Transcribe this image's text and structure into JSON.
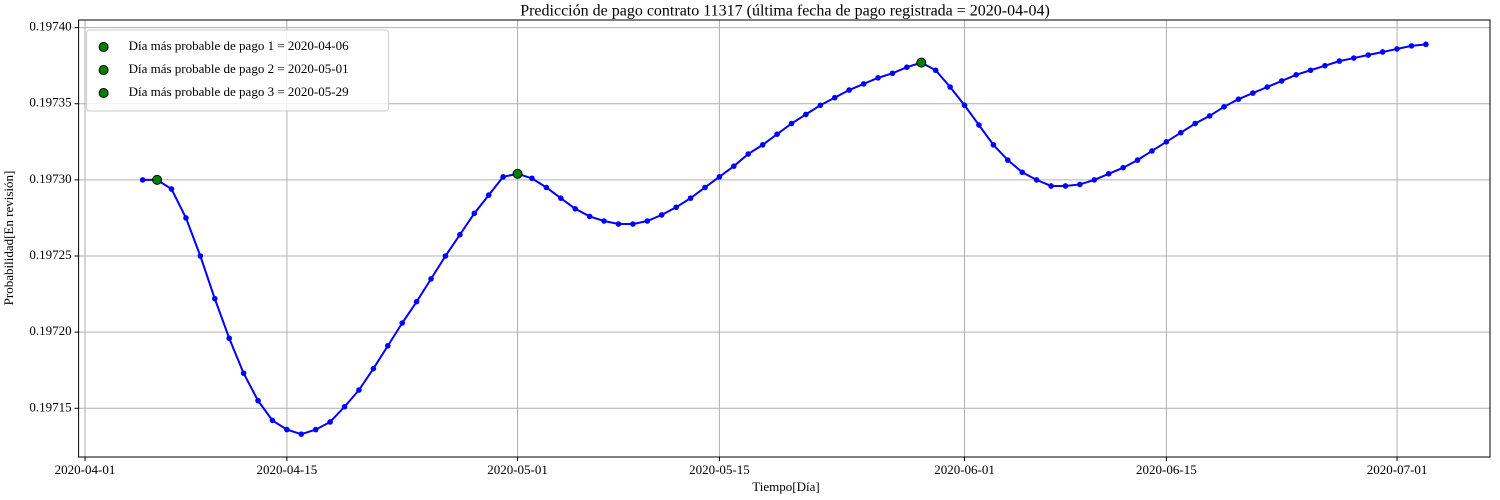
{
  "chart_data": {
    "type": "line",
    "title": "Predicción de pago contrato 11317 (última fecha de pago registrada = 2020-04-04)",
    "xlabel": "Tiempo[Día]",
    "ylabel": "Probabilidad[En revisión]",
    "xlim": [
      "2020-03-31T13:19",
      "2020-07-07T10:41"
    ],
    "xticks": [
      "2020-04-01",
      "2020-04-15",
      "2020-05-01",
      "2020-05-15",
      "2020-06-01",
      "2020-06-15",
      "2020-07-01"
    ],
    "ylim": [
      0.197118,
      0.197405
    ],
    "yticks": [
      0.19715,
      {
        "value": 0.1972,
        "label": "0.19720"
      },
      0.19725,
      {
        "value": 0.1973,
        "label": "0.19730"
      },
      0.19735,
      {
        "value": 0.1974,
        "label": "0.19740"
      }
    ],
    "grid": true,
    "legend": "upper-left",
    "series": [
      {
        "mode": "lines+markers",
        "color": "#0000ff",
        "x": [
          "2020-04-05",
          "2020-04-06",
          "2020-04-07",
          "2020-04-08",
          "2020-04-09",
          "2020-04-10",
          "2020-04-11",
          "2020-04-12",
          "2020-04-13",
          "2020-04-14",
          "2020-04-15",
          "2020-04-16",
          "2020-04-17",
          "2020-04-18",
          "2020-04-19",
          "2020-04-20",
          "2020-04-21",
          "2020-04-22",
          "2020-04-23",
          "2020-04-24",
          "2020-04-25",
          "2020-04-26",
          "2020-04-27",
          "2020-04-28",
          "2020-04-29",
          "2020-04-30",
          "2020-05-01",
          "2020-05-02",
          "2020-05-03",
          "2020-05-04",
          "2020-05-05",
          "2020-05-06",
          "2020-05-07",
          "2020-05-08",
          "2020-05-09",
          "2020-05-10",
          "2020-05-11",
          "2020-05-12",
          "2020-05-13",
          "2020-05-14",
          "2020-05-15",
          "2020-05-16",
          "2020-05-17",
          "2020-05-18",
          "2020-05-19",
          "2020-05-20",
          "2020-05-21",
          "2020-05-22",
          "2020-05-23",
          "2020-05-24",
          "2020-05-25",
          "2020-05-26",
          "2020-05-27",
          "2020-05-28",
          "2020-05-29",
          "2020-05-30",
          "2020-05-31",
          "2020-06-01",
          "2020-06-02",
          "2020-06-03",
          "2020-06-04",
          "2020-06-05",
          "2020-06-06",
          "2020-06-07",
          "2020-06-08",
          "2020-06-09",
          "2020-06-10",
          "2020-06-11",
          "2020-06-12",
          "2020-06-13",
          "2020-06-14",
          "2020-06-15",
          "2020-06-16",
          "2020-06-17",
          "2020-06-18",
          "2020-06-19",
          "2020-06-20",
          "2020-06-21",
          "2020-06-22",
          "2020-06-23",
          "2020-06-24",
          "2020-06-25",
          "2020-06-26",
          "2020-06-27",
          "2020-06-28",
          "2020-06-29",
          "2020-06-30",
          "2020-07-01",
          "2020-07-02",
          "2020-07-03"
        ],
        "values": [
          0.1973,
          0.1973,
          0.197294,
          0.197275,
          0.19725,
          0.197222,
          0.197196,
          0.197173,
          0.197155,
          0.197142,
          0.197136,
          0.197133,
          0.197136,
          0.197141,
          0.197151,
          0.197162,
          0.197176,
          0.197191,
          0.197206,
          0.19722,
          0.197235,
          0.19725,
          0.197264,
          0.197278,
          0.19729,
          0.197302,
          0.197304,
          0.197301,
          0.197295,
          0.197288,
          0.197281,
          0.197276,
          0.197273,
          0.197271,
          0.197271,
          0.197273,
          0.197277,
          0.197282,
          0.197288,
          0.197295,
          0.197302,
          0.197309,
          0.197317,
          0.197323,
          0.19733,
          0.197337,
          0.197343,
          0.197349,
          0.197354,
          0.197359,
          0.197363,
          0.197367,
          0.19737,
          0.197374,
          0.197377,
          0.197372,
          0.197361,
          0.197349,
          0.197336,
          0.197323,
          0.197313,
          0.197305,
          0.1973,
          0.197296,
          0.197296,
          0.197297,
          0.1973,
          0.197304,
          0.197308,
          0.197313,
          0.197319,
          0.197325,
          0.197331,
          0.197337,
          0.197342,
          0.197348,
          0.197353,
          0.197357,
          0.197361,
          0.197365,
          0.197369,
          0.197372,
          0.197375,
          0.197378,
          0.19738,
          0.197382,
          0.197384,
          0.197386,
          0.197388,
          0.197389
        ]
      },
      {
        "mode": "markers",
        "name": "Día más probable de pago 1 = 2020-04-06",
        "color": "#008000",
        "x": [
          "2020-04-06"
        ],
        "values": [
          0.1973
        ]
      },
      {
        "mode": "markers",
        "name": "Día más probable de pago 2 = 2020-05-01",
        "color": "#008000",
        "x": [
          "2020-05-01"
        ],
        "values": [
          0.197304
        ]
      },
      {
        "mode": "markers",
        "name": "Día más probable de pago 3 = 2020-05-29",
        "color": "#008000",
        "x": [
          "2020-05-29"
        ],
        "values": [
          0.197377
        ]
      }
    ]
  }
}
